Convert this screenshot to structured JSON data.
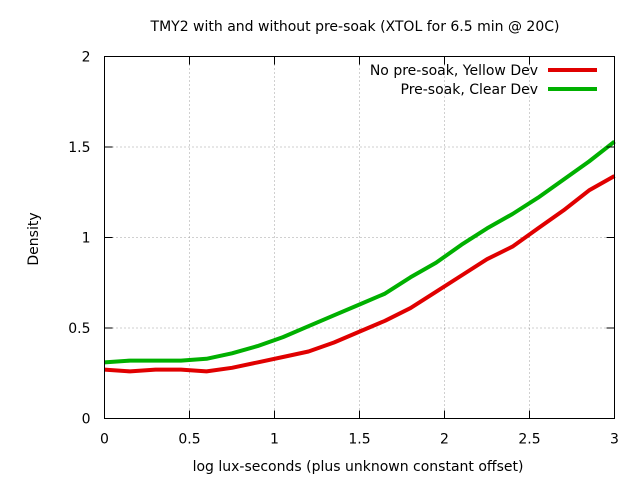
{
  "chart_data": {
    "type": "line",
    "title": "TMY2 with and without pre-soak (XTOL for 6.5 min @ 20C)",
    "xlabel": "log lux-seconds (plus unknown constant offset)",
    "ylabel": "Density",
    "xlim": [
      0,
      3
    ],
    "ylim": [
      0,
      2
    ],
    "x_ticks": [
      0,
      0.5,
      1,
      1.5,
      2,
      2.5,
      3
    ],
    "x_tick_labels": [
      "0",
      "0.5",
      "1",
      "1.5",
      "2",
      "2.5",
      "3"
    ],
    "y_ticks": [
      0,
      0.5,
      1,
      1.5,
      2
    ],
    "y_tick_labels": [
      "0",
      "0.5",
      "1",
      "1.5",
      "2"
    ],
    "grid": true,
    "legend_position": "top-right",
    "series": [
      {
        "name": "No pre-soak, Yellow Dev",
        "color": "#e00000",
        "x": [
          0,
          0.15,
          0.3,
          0.45,
          0.6,
          0.75,
          0.9,
          1.05,
          1.2,
          1.35,
          1.5,
          1.65,
          1.8,
          1.95,
          2.1,
          2.25,
          2.4,
          2.55,
          2.7,
          2.85,
          3.0
        ],
        "y": [
          0.27,
          0.26,
          0.27,
          0.27,
          0.26,
          0.28,
          0.31,
          0.34,
          0.37,
          0.42,
          0.48,
          0.54,
          0.61,
          0.7,
          0.79,
          0.88,
          0.95,
          1.05,
          1.15,
          1.26,
          1.34
        ]
      },
      {
        "name": "Pre-soak, Clear Dev",
        "color": "#00b000",
        "x": [
          0,
          0.15,
          0.3,
          0.45,
          0.6,
          0.75,
          0.9,
          1.05,
          1.2,
          1.35,
          1.5,
          1.65,
          1.8,
          1.95,
          2.1,
          2.25,
          2.4,
          2.55,
          2.7,
          2.85,
          3.0
        ],
        "y": [
          0.31,
          0.32,
          0.32,
          0.32,
          0.33,
          0.36,
          0.4,
          0.45,
          0.51,
          0.57,
          0.63,
          0.69,
          0.78,
          0.86,
          0.96,
          1.05,
          1.13,
          1.22,
          1.32,
          1.42,
          1.53
        ]
      }
    ]
  }
}
